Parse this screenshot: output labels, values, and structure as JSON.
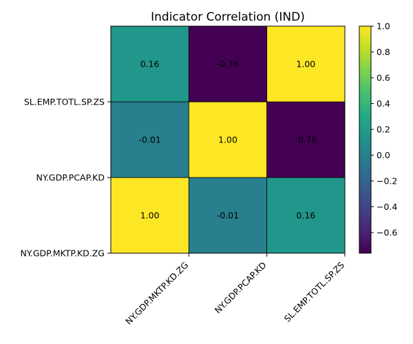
{
  "chart_data": {
    "type": "heatmap",
    "title": "Indicator Correlation (IND)",
    "x_categories": [
      "NY.GDP.MKTP.KD.ZG",
      "NY.GDP.PCAP.KD",
      "SL.EMP.TOTL.SP.ZS"
    ],
    "y_categories": [
      "NY.GDP.MKTP.KD.ZG",
      "NY.GDP.PCAP.KD",
      "SL.EMP.TOTL.SP.ZS"
    ],
    "matrix": [
      [
        1.0,
        -0.01,
        0.16
      ],
      [
        -0.01,
        1.0,
        -0.76
      ],
      [
        0.16,
        -0.76,
        1.0
      ]
    ],
    "cell_labels": [
      [
        "1.00",
        "-0.01",
        "0.16"
      ],
      [
        "-0.01",
        "1.00",
        "-0.76"
      ],
      [
        "0.16",
        "-0.76",
        "1.00"
      ]
    ],
    "colormap": "viridis",
    "vmin": -0.76,
    "vmax": 1.0,
    "colorbar_ticks": [
      1.0,
      0.8,
      0.6,
      0.4,
      0.2,
      0.0,
      -0.2,
      -0.4,
      -0.6
    ],
    "colorbar_tick_labels": [
      "1.0",
      "0.8",
      "0.6",
      "0.4",
      "0.2",
      "0.0",
      "−0.2",
      "−0.4",
      "−0.6"
    ],
    "y_origin": "bottom"
  }
}
